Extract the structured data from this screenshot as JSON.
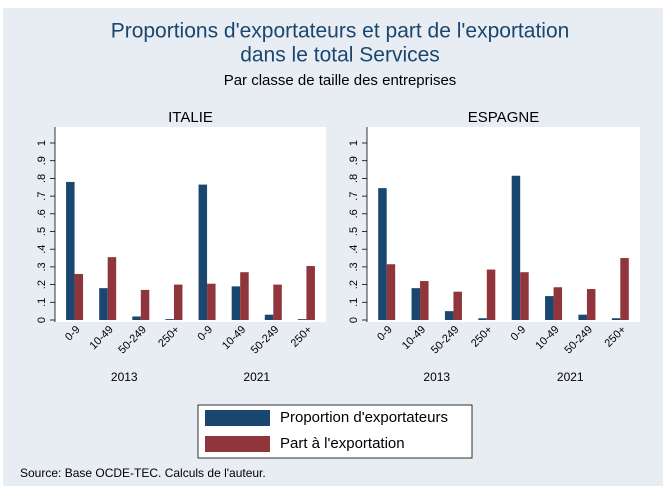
{
  "chart_data": {
    "type": "bar",
    "title": [
      "Proportions d'exportateurs et part de l'exportation",
      "dans le total Services"
    ],
    "subtitle": "Par classe de taille des entreprises",
    "note": "Source: Base OCDE-TEC. Calculs de l'auteur.",
    "categories": [
      "0-9",
      "10-49",
      "50-249",
      "250+"
    ],
    "groups": [
      "2013",
      "2021"
    ],
    "series": [
      {
        "name": "Proportion d'exportateurs",
        "color": "#1a476f"
      },
      {
        "name": "Part à l'exportation",
        "color": "#90353b"
      }
    ],
    "ylim": [
      0,
      1
    ],
    "yticks": [
      0,
      {
        "value": 0.1,
        "label": ".1"
      },
      {
        "value": 0.2,
        "label": ".2"
      },
      {
        "value": 0.3,
        "label": ".3"
      },
      {
        "value": 0.4,
        "label": ".4"
      },
      {
        "value": 0.5,
        "label": ".5"
      },
      {
        "value": 0.6,
        "label": ".6"
      },
      {
        "value": 0.7,
        "label": ".7"
      },
      {
        "value": 0.8,
        "label": ".8"
      },
      {
        "value": 0.9,
        "label": ".9"
      },
      1
    ],
    "panels": [
      {
        "title": "ITALIE",
        "series": [
          {
            "values": [
              0.78,
              0.18,
              0.02,
              0.005,
              0.765,
              0.19,
              0.03,
              0.005
            ]
          },
          {
            "values": [
              0.26,
              0.355,
              0.17,
              0.2,
              0.205,
              0.27,
              0.2,
              0.305
            ]
          }
        ]
      },
      {
        "title": "ESPAGNE",
        "series": [
          {
            "values": [
              0.745,
              0.18,
              0.05,
              0.01,
              0.815,
              0.135,
              0.03,
              0.01
            ]
          },
          {
            "values": [
              0.315,
              0.22,
              0.16,
              0.285,
              0.27,
              0.185,
              0.175,
              0.35
            ]
          }
        ]
      }
    ]
  }
}
